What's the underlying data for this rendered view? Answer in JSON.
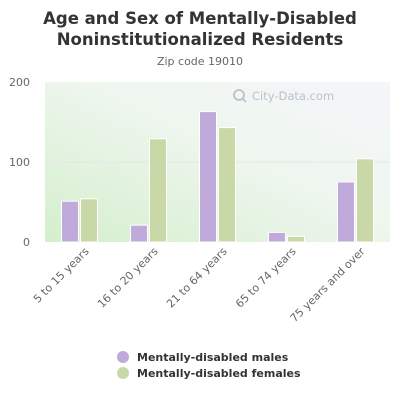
{
  "chart_data": {
    "type": "bar",
    "title": "Age and Sex of Mentally-Disabled Noninstitutionalized Residents",
    "subtitle": "Zip code 19010",
    "categories": [
      "5 to 15 years",
      "16 to 20 years",
      "21 to 64 years",
      "65 to 74 years",
      "75 years and over"
    ],
    "series": [
      {
        "name": "Mentally-disabled males",
        "values": [
          51,
          21,
          163,
          12,
          75
        ],
        "color": "#c0a9db"
      },
      {
        "name": "Mentally-disabled females",
        "values": [
          54,
          129,
          143,
          7,
          104
        ],
        "color": "#c8d9a7"
      }
    ],
    "ylim": [
      0,
      200
    ],
    "yticks": [
      "0",
      "100",
      "200"
    ],
    "grid": true,
    "legend_position": "bottom"
  },
  "watermark": "City-Data.com"
}
